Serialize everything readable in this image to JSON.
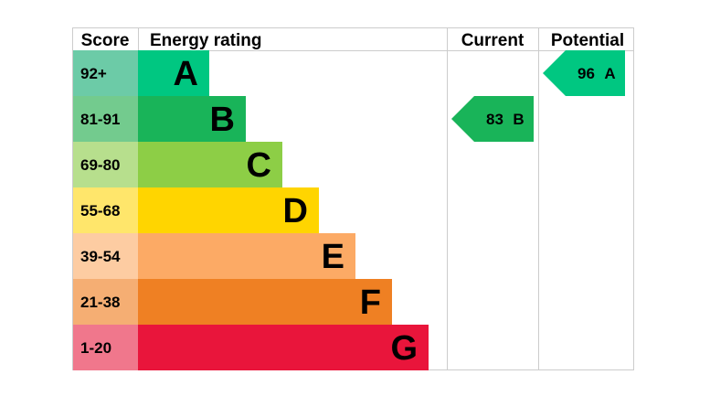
{
  "chart_data": {
    "type": "bar",
    "headers": {
      "score": "Score",
      "rating": "Energy rating",
      "current": "Current",
      "potential": "Potential"
    },
    "bands": [
      {
        "score": "92+",
        "letter": "A",
        "color": "#00c781",
        "score_bg": "#6ccba7"
      },
      {
        "score": "81-91",
        "letter": "B",
        "color": "#19b459",
        "score_bg": "#73cb8e"
      },
      {
        "score": "69-80",
        "letter": "C",
        "color": "#8dce46",
        "score_bg": "#b7df8d"
      },
      {
        "score": "55-68",
        "letter": "D",
        "color": "#ffd500",
        "score_bg": "#ffe66b"
      },
      {
        "score": "39-54",
        "letter": "E",
        "color": "#fcaa65",
        "score_bg": "#fdcca2"
      },
      {
        "score": "21-38",
        "letter": "F",
        "color": "#ef8023",
        "score_bg": "#f5ae73"
      },
      {
        "score": "1-20",
        "letter": "G",
        "color": "#e9153b",
        "score_bg": "#f0778c"
      }
    ],
    "current": {
      "value": 83,
      "letter": "B",
      "color": "#19b459"
    },
    "potential": {
      "value": 96,
      "letter": "A",
      "color": "#00c781"
    }
  }
}
